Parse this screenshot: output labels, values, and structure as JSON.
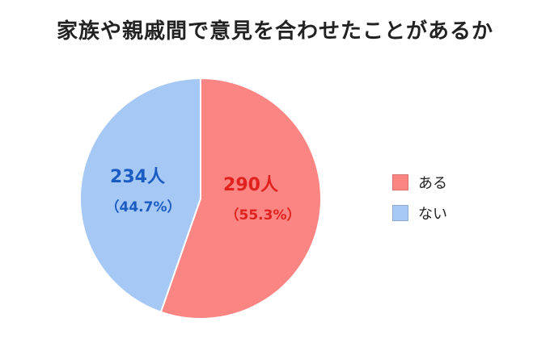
{
  "chart_data": {
    "type": "pie",
    "title": "家族や親戚間で意見を合わせたことがあるか",
    "slices": [
      {
        "label": "ある",
        "value": 290,
        "value_label": "290人",
        "percent_label": "（55.3%）",
        "color": "#fb8582",
        "text_color": "#e0211e"
      },
      {
        "label": "ない",
        "value": 234,
        "value_label": "234人",
        "percent_label": "（44.7%）",
        "color": "#a6c8f4",
        "text_color": "#1a5cc2"
      }
    ],
    "legend": {
      "position": "right"
    },
    "start_angle_deg": 0,
    "direction": "clockwise"
  }
}
